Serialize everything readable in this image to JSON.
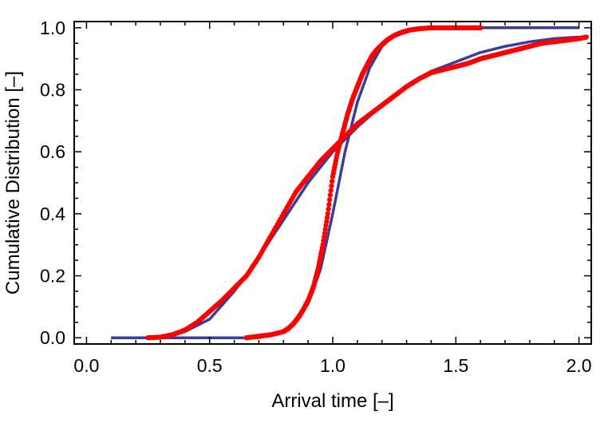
{
  "chart_data": {
    "type": "scatter",
    "title": "",
    "xlabel": "Arrival time [–]",
    "ylabel": "Cumulative Distribution [–]",
    "xlim": [
      -0.05,
      2.05
    ],
    "ylim": [
      -0.02,
      1.02
    ],
    "x_ticks": [
      0.0,
      0.5,
      1.0,
      1.5,
      2.0
    ],
    "x_tick_labels": [
      "0.0",
      "0.5",
      "1.0",
      "1.5",
      "2.0"
    ],
    "y_ticks": [
      0.0,
      0.2,
      0.4,
      0.6,
      0.8,
      1.0
    ],
    "y_tick_labels": [
      "0.0",
      "0.2",
      "0.4",
      "0.6",
      "0.8",
      "1.0"
    ],
    "grid": false,
    "frame": true,
    "series": [
      {
        "kind": "line",
        "color": "#3b3b99",
        "x": [
          0.1,
          0.3,
          0.5,
          0.6,
          0.7,
          0.8,
          0.85,
          0.9,
          0.95,
          1.0,
          1.05,
          1.1,
          1.15,
          1.2,
          1.25,
          1.3,
          1.35,
          1.4,
          1.5,
          1.6,
          1.8,
          2.0
        ],
        "y": [
          0.0,
          0.0,
          0.0,
          0.0,
          0.0,
          0.02,
          0.05,
          0.11,
          0.22,
          0.4,
          0.6,
          0.76,
          0.87,
          0.94,
          0.975,
          0.99,
          0.997,
          1.0,
          1.0,
          1.0,
          1.0,
          1.0
        ]
      },
      {
        "kind": "line",
        "color": "#3b3b99",
        "x": [
          0.1,
          0.3,
          0.4,
          0.5,
          0.6,
          0.7,
          0.8,
          0.9,
          1.0,
          1.05,
          1.1,
          1.2,
          1.3,
          1.4,
          1.5,
          1.6,
          1.7,
          1.8,
          1.9,
          2.0
        ],
        "y": [
          0.0,
          0.0,
          0.02,
          0.06,
          0.15,
          0.26,
          0.38,
          0.5,
          0.6,
          0.64,
          0.68,
          0.75,
          0.81,
          0.86,
          0.89,
          0.92,
          0.94,
          0.955,
          0.965,
          0.97
        ]
      },
      {
        "kind": "points",
        "color": "#ff0000",
        "x": [
          0.65,
          0.7,
          0.75,
          0.8,
          0.82,
          0.84,
          0.86,
          0.88,
          0.9,
          0.92,
          0.94,
          0.96,
          0.98,
          1.0,
          1.02,
          1.04,
          1.06,
          1.08,
          1.1,
          1.12,
          1.14,
          1.16,
          1.18,
          1.2,
          1.22,
          1.25,
          1.28,
          1.31,
          1.35,
          1.4,
          1.45,
          1.5,
          1.55,
          1.6
        ],
        "y": [
          0.0,
          0.005,
          0.01,
          0.02,
          0.03,
          0.045,
          0.065,
          0.09,
          0.12,
          0.16,
          0.22,
          0.3,
          0.4,
          0.52,
          0.6,
          0.66,
          0.72,
          0.77,
          0.81,
          0.85,
          0.88,
          0.91,
          0.93,
          0.945,
          0.96,
          0.975,
          0.985,
          0.992,
          0.997,
          1.0,
          1.0,
          1.0,
          1.0,
          1.0
        ]
      },
      {
        "kind": "points",
        "color": "#ff0000",
        "x": [
          0.25,
          0.3,
          0.35,
          0.4,
          0.45,
          0.5,
          0.55,
          0.6,
          0.65,
          0.7,
          0.75,
          0.8,
          0.85,
          0.9,
          0.95,
          1.0,
          1.05,
          1.1,
          1.15,
          1.2,
          1.25,
          1.3,
          1.35,
          1.4,
          1.45,
          1.5,
          1.55,
          1.6,
          1.65,
          1.7,
          1.75,
          1.8,
          1.85,
          1.9,
          1.95,
          2.0,
          2.03
        ],
        "y": [
          0.0,
          0.002,
          0.01,
          0.025,
          0.05,
          0.085,
          0.12,
          0.16,
          0.2,
          0.26,
          0.33,
          0.4,
          0.47,
          0.52,
          0.57,
          0.61,
          0.65,
          0.69,
          0.72,
          0.75,
          0.78,
          0.81,
          0.835,
          0.855,
          0.865,
          0.875,
          0.885,
          0.9,
          0.91,
          0.92,
          0.93,
          0.94,
          0.95,
          0.955,
          0.96,
          0.965,
          0.97
        ]
      }
    ]
  }
}
